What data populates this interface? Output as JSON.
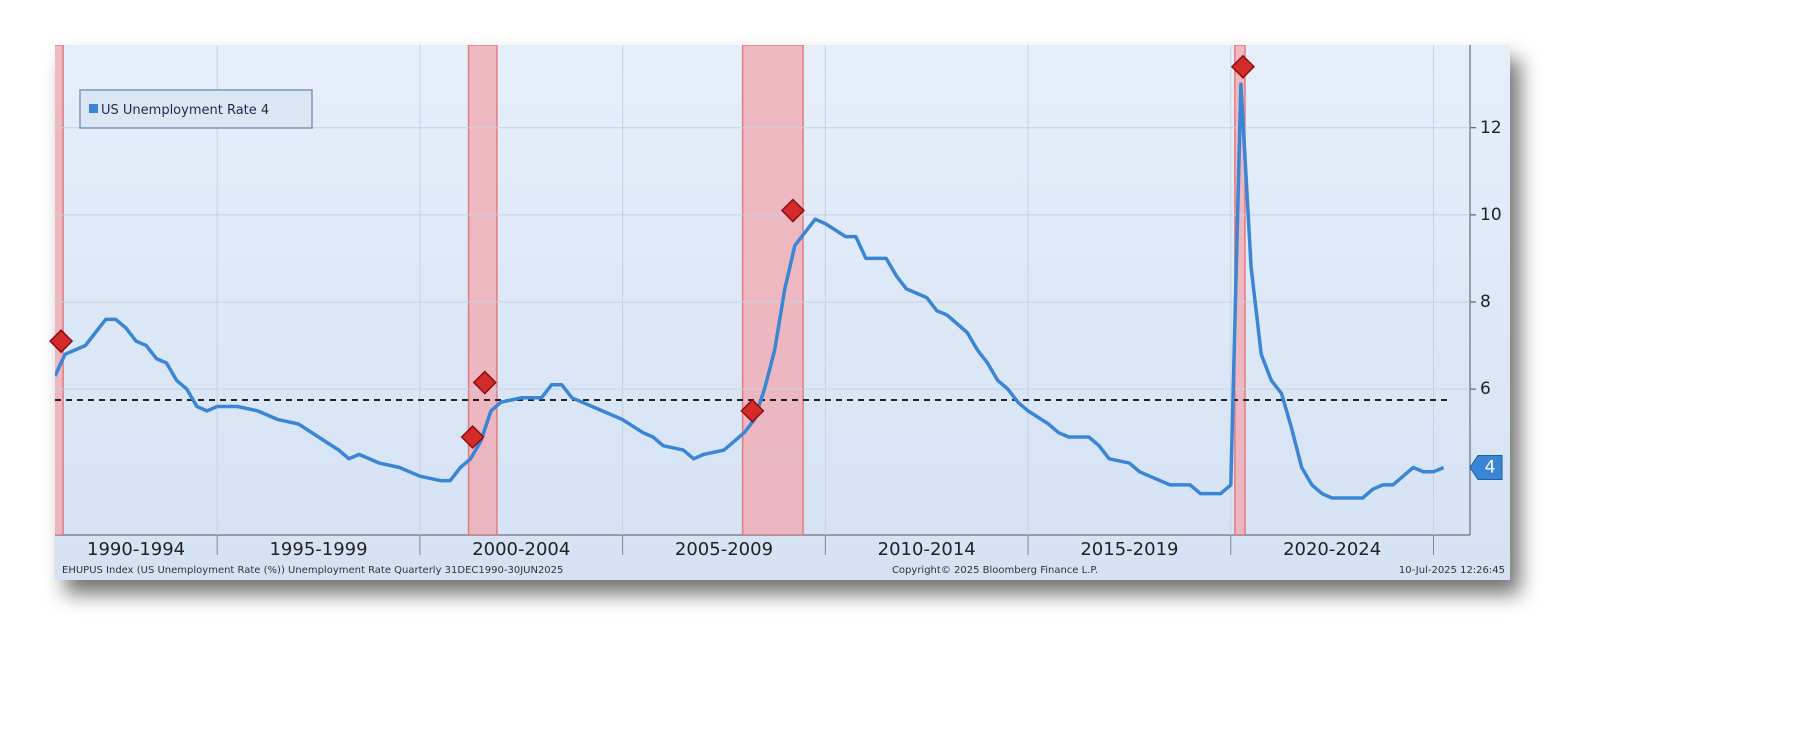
{
  "chart_data": {
    "type": "line",
    "x_period_labels": [
      {
        "value": 1990,
        "label": "1990-1994"
      },
      {
        "value": 1995,
        "label": "1995-1999"
      },
      {
        "value": 2000,
        "label": "2000-2004"
      },
      {
        "value": 2005,
        "label": "2005-2009"
      },
      {
        "value": 2010,
        "label": "2010-2014"
      },
      {
        "value": 2015,
        "label": "2015-2019"
      },
      {
        "value": 2020,
        "label": "2020-2024"
      }
    ],
    "xlim": [
      1991.0,
      2025.9
    ],
    "xticks": [
      1995,
      2000,
      2005,
      2010,
      2015,
      2020,
      2025
    ],
    "ylim": [
      2.65,
      13.9
    ],
    "yticks": [
      6,
      8,
      10,
      12
    ],
    "grid": true,
    "series": [
      {
        "name": "US Unemployment Rate",
        "color": "#3a86d4",
        "x": [
          1991.0,
          1991.25,
          1991.5,
          1991.75,
          1992.0,
          1992.25,
          1992.5,
          1992.75,
          1993.0,
          1993.25,
          1993.5,
          1993.75,
          1994.0,
          1994.25,
          1994.5,
          1994.75,
          1995.0,
          1995.5,
          1996.0,
          1996.5,
          1997.0,
          1997.5,
          1998.0,
          1998.25,
          1998.5,
          1999.0,
          1999.5,
          2000.0,
          2000.5,
          2000.75,
          2001.0,
          2001.25,
          2001.5,
          2001.75,
          2002.0,
          2002.5,
          2003.0,
          2003.25,
          2003.5,
          2003.75,
          2004.0,
          2004.5,
          2005.0,
          2005.5,
          2005.75,
          2006.0,
          2006.5,
          2006.75,
          2007.0,
          2007.5,
          2007.75,
          2008.0,
          2008.25,
          2008.5,
          2008.75,
          2009.0,
          2009.25,
          2009.5,
          2009.75,
          2010.0,
          2010.5,
          2010.75,
          2011.0,
          2011.5,
          2011.75,
          2012.0,
          2012.5,
          2012.75,
          2013.0,
          2013.5,
          2013.75,
          2014.0,
          2014.25,
          2014.5,
          2014.75,
          2015.0,
          2015.5,
          2015.75,
          2016.0,
          2016.5,
          2016.75,
          2017.0,
          2017.5,
          2017.75,
          2018.0,
          2018.5,
          2019.0,
          2019.25,
          2019.5,
          2019.75,
          2020.0,
          2020.25,
          2020.5,
          2020.75,
          2021.0,
          2021.25,
          2021.5,
          2021.75,
          2022.0,
          2022.25,
          2022.5,
          2022.75,
          2023.0,
          2023.25,
          2023.5,
          2023.75,
          2024.0,
          2024.25,
          2024.5,
          2024.75,
          2025.0,
          2025.25
        ],
        "values": [
          6.3,
          6.8,
          6.9,
          7.0,
          7.3,
          7.6,
          7.6,
          7.4,
          7.1,
          7.0,
          6.7,
          6.6,
          6.2,
          6.0,
          5.6,
          5.5,
          5.6,
          5.6,
          5.5,
          5.3,
          5.2,
          4.9,
          4.6,
          4.4,
          4.5,
          4.3,
          4.2,
          4.0,
          3.9,
          3.9,
          4.2,
          4.4,
          4.8,
          5.5,
          5.7,
          5.8,
          5.8,
          6.1,
          6.1,
          5.8,
          5.7,
          5.5,
          5.3,
          5.0,
          4.9,
          4.7,
          4.6,
          4.4,
          4.5,
          4.6,
          4.8,
          5.0,
          5.3,
          6.0,
          6.9,
          8.3,
          9.3,
          9.6,
          9.9,
          9.8,
          9.5,
          9.5,
          9.0,
          9.0,
          8.6,
          8.3,
          8.1,
          7.8,
          7.7,
          7.3,
          6.9,
          6.6,
          6.2,
          6.0,
          5.7,
          5.5,
          5.2,
          5.0,
          4.9,
          4.9,
          4.7,
          4.4,
          4.3,
          4.1,
          4.0,
          3.8,
          3.8,
          3.6,
          3.6,
          3.6,
          3.8,
          13.0,
          8.8,
          6.8,
          6.2,
          5.9,
          5.1,
          4.2,
          3.8,
          3.6,
          3.5,
          3.5,
          3.5,
          3.5,
          3.7,
          3.8,
          3.8,
          4.0,
          4.2,
          4.1,
          4.1,
          4.2
        ]
      }
    ],
    "last_value": 4.2,
    "last_value_label": "4",
    "average": 5.75,
    "recessions": [
      [
        1990.6,
        1991.2
      ],
      [
        2001.2,
        2001.9
      ],
      [
        2007.96,
        2009.45
      ],
      [
        2020.1,
        2020.35
      ]
    ],
    "markers": {
      "color": "#d42a2a",
      "x": [
        1991.15,
        2001.3,
        2001.6,
        2008.2,
        2009.2,
        2020.3
      ],
      "values": [
        7.1,
        4.9,
        6.15,
        5.5,
        10.1,
        13.4
      ]
    },
    "footer_left": "EHUPUS Index (US Unemployment Rate (%)) Unemployment Rate  Quarterly 31DEC1990-30JUN2025",
    "footer_center": "Copyright© 2025 Bloomberg Finance L.P.",
    "footer_right": "10-Jul-2025 12:26:45"
  }
}
